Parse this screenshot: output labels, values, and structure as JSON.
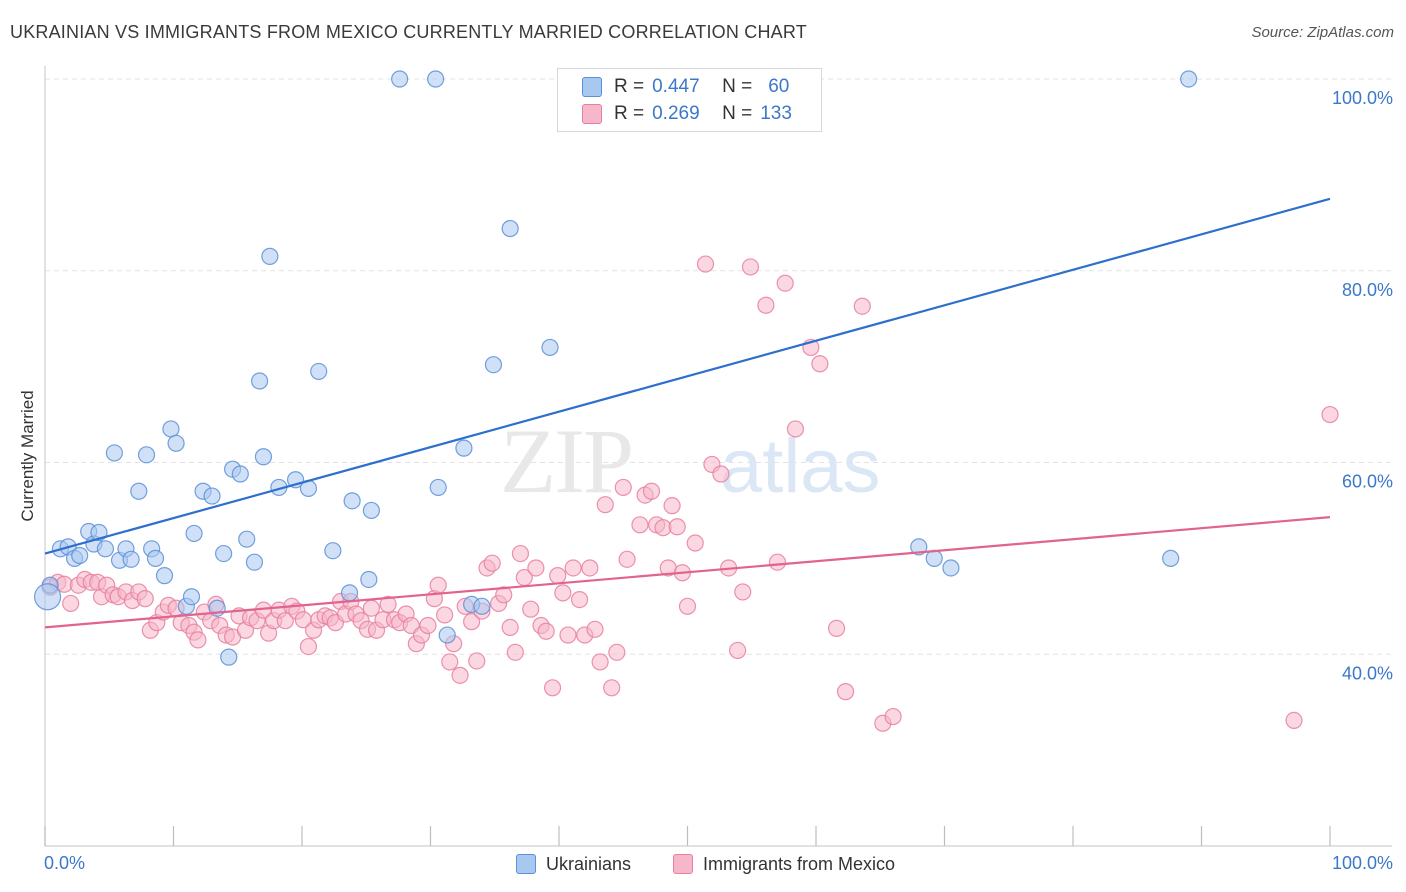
{
  "chart_data": {
    "type": "scatter",
    "title": "UKRAINIAN VS IMMIGRANTS FROM MEXICO CURRENTLY MARRIED CORRELATION CHART",
    "source": "Source: ZipAtlas.com",
    "xlabel": "",
    "ylabel": "Currently Married",
    "xlim": [
      0,
      100
    ],
    "ylim": [
      20,
      100
    ],
    "x_tick_labels": {
      "min": "0.0%",
      "max": "100.0%"
    },
    "y_ticks": [
      {
        "value": 100,
        "label": "100.0%"
      },
      {
        "value": 80,
        "label": "80.0%"
      },
      {
        "value": 60,
        "label": "60.0%"
      },
      {
        "value": 40,
        "label": "40.0%"
      }
    ],
    "watermark": {
      "zip": "ZIP",
      "atlas": "atlas"
    },
    "legend": {
      "r_label": "R =",
      "n_label": "N =",
      "entries": [
        {
          "r": "0.447",
          "n": "60",
          "color": "#a9c8f0"
        },
        {
          "r": "0.269",
          "n": "133",
          "color": "#f5b7c9"
        }
      ]
    },
    "series": [
      {
        "name": "Ukrainians",
        "color": "#a9c8f0",
        "stroke": "#5b8fd8",
        "line_color": "#2e6fce",
        "trend": {
          "x": [
            0,
            100
          ],
          "y": [
            50.5,
            87.5
          ]
        },
        "points": [
          [
            0.4,
            47.2
          ],
          [
            1.2,
            51
          ],
          [
            1.8,
            51.2
          ],
          [
            2.3,
            50
          ],
          [
            2.7,
            50.3
          ],
          [
            3.4,
            52.8
          ],
          [
            3.8,
            51.5
          ],
          [
            4.2,
            52.7
          ],
          [
            4.7,
            51
          ],
          [
            5.4,
            61
          ],
          [
            5.8,
            49.8
          ],
          [
            6.3,
            51
          ],
          [
            6.7,
            49.9
          ],
          [
            7.3,
            57
          ],
          [
            7.9,
            60.8
          ],
          [
            8.3,
            51
          ],
          [
            8.6,
            50
          ],
          [
            9.3,
            48.2
          ],
          [
            9.8,
            63.5
          ],
          [
            10.2,
            62
          ],
          [
            11,
            45
          ],
          [
            11.4,
            46
          ],
          [
            11.6,
            52.6
          ],
          [
            12.3,
            57
          ],
          [
            13,
            56.5
          ],
          [
            13.4,
            44.8
          ],
          [
            13.9,
            50.5
          ],
          [
            14.3,
            39.7
          ],
          [
            14.6,
            59.3
          ],
          [
            15.2,
            58.8
          ],
          [
            15.7,
            52
          ],
          [
            16.3,
            49.6
          ],
          [
            16.7,
            68.5
          ],
          [
            17,
            60.6
          ],
          [
            17.5,
            81.5
          ],
          [
            18.2,
            57.4
          ],
          [
            19.5,
            58.2
          ],
          [
            20.5,
            57.3
          ],
          [
            21.3,
            69.5
          ],
          [
            22.4,
            50.8
          ],
          [
            23.7,
            46.4
          ],
          [
            23.9,
            56
          ],
          [
            25.2,
            47.8
          ],
          [
            25.4,
            55
          ],
          [
            27.6,
            100
          ],
          [
            30.4,
            100
          ],
          [
            30.6,
            57.4
          ],
          [
            31.3,
            42
          ],
          [
            32.6,
            61.5
          ],
          [
            33.2,
            45.2
          ],
          [
            34,
            45
          ],
          [
            34.9,
            70.2
          ],
          [
            36.2,
            84.4
          ],
          [
            39.3,
            72
          ],
          [
            68,
            51.2
          ],
          [
            69.2,
            50
          ],
          [
            70.5,
            49
          ],
          [
            87.6,
            50
          ],
          [
            89,
            100
          ],
          [
            0.2,
            46
          ]
        ],
        "point_sizes": {
          "default": 16,
          "large_index": 59,
          "large": 26
        }
      },
      {
        "name": "Immigrants from Mexico",
        "color": "#f5b7c9",
        "stroke": "#e77fa0",
        "line_color": "#e2638e",
        "trend": {
          "x": [
            0,
            100
          ],
          "y": [
            42.8,
            54.3
          ]
        },
        "points": [
          [
            0.4,
            47
          ],
          [
            1,
            47.5
          ],
          [
            1.5,
            47.3
          ],
          [
            2,
            45.3
          ],
          [
            2.6,
            47.2
          ],
          [
            3.1,
            47.8
          ],
          [
            3.6,
            47.5
          ],
          [
            4.1,
            47.5
          ],
          [
            4.4,
            46
          ],
          [
            4.8,
            47.2
          ],
          [
            5.3,
            46.2
          ],
          [
            5.7,
            46
          ],
          [
            6.3,
            46.5
          ],
          [
            6.8,
            45.6
          ],
          [
            7.3,
            46.5
          ],
          [
            7.8,
            45.8
          ],
          [
            8.2,
            42.5
          ],
          [
            8.7,
            43.3
          ],
          [
            9.2,
            44.4
          ],
          [
            9.6,
            45.1
          ],
          [
            10.2,
            44.8
          ],
          [
            10.6,
            43.3
          ],
          [
            11.2,
            43
          ],
          [
            11.6,
            42.3
          ],
          [
            11.9,
            41.5
          ],
          [
            12.4,
            44.4
          ],
          [
            12.9,
            43.5
          ],
          [
            13.3,
            45.2
          ],
          [
            13.6,
            43
          ],
          [
            14.1,
            42
          ],
          [
            14.6,
            41.8
          ],
          [
            15.1,
            44
          ],
          [
            15.6,
            42.5
          ],
          [
            16,
            43.8
          ],
          [
            16.5,
            43.5
          ],
          [
            17,
            44.6
          ],
          [
            17.4,
            42.2
          ],
          [
            17.8,
            43.5
          ],
          [
            18.2,
            44.6
          ],
          [
            18.7,
            43.5
          ],
          [
            19.2,
            45
          ],
          [
            19.6,
            44.5
          ],
          [
            20.1,
            43.6
          ],
          [
            20.5,
            40.8
          ],
          [
            20.9,
            42.5
          ],
          [
            21.3,
            43.6
          ],
          [
            21.8,
            44
          ],
          [
            22.2,
            43.8
          ],
          [
            22.6,
            43.3
          ],
          [
            23,
            45.5
          ],
          [
            23.4,
            44.2
          ],
          [
            23.8,
            45.5
          ],
          [
            24.2,
            44.2
          ],
          [
            24.6,
            43.5
          ],
          [
            25.1,
            42.6
          ],
          [
            25.4,
            44.8
          ],
          [
            25.8,
            42.5
          ],
          [
            26.3,
            43.6
          ],
          [
            26.7,
            45.2
          ],
          [
            27.2,
            43.6
          ],
          [
            27.6,
            43.3
          ],
          [
            28.1,
            44.2
          ],
          [
            28.5,
            43
          ],
          [
            28.9,
            41.1
          ],
          [
            29.3,
            42
          ],
          [
            29.8,
            43
          ],
          [
            30.3,
            45.8
          ],
          [
            30.6,
            47.2
          ],
          [
            31.1,
            44.1
          ],
          [
            31.5,
            39.2
          ],
          [
            31.8,
            41.1
          ],
          [
            32.3,
            37.8
          ],
          [
            32.7,
            45
          ],
          [
            33.2,
            43.4
          ],
          [
            33.6,
            39.3
          ],
          [
            34,
            44.5
          ],
          [
            34.4,
            49
          ],
          [
            34.8,
            49.5
          ],
          [
            35.3,
            45.3
          ],
          [
            35.7,
            46.2
          ],
          [
            36.2,
            42.8
          ],
          [
            36.6,
            40.2
          ],
          [
            37,
            50.5
          ],
          [
            37.3,
            48
          ],
          [
            37.8,
            44.7
          ],
          [
            38.2,
            49
          ],
          [
            38.6,
            43
          ],
          [
            39,
            42.4
          ],
          [
            39.5,
            36.5
          ],
          [
            39.9,
            48.2
          ],
          [
            40.3,
            46.4
          ],
          [
            40.7,
            42
          ],
          [
            41.1,
            49
          ],
          [
            41.6,
            45.7
          ],
          [
            42,
            42
          ],
          [
            42.4,
            49
          ],
          [
            42.8,
            42.6
          ],
          [
            43.2,
            39.2
          ],
          [
            43.6,
            55.6
          ],
          [
            44.1,
            36.5
          ],
          [
            44.5,
            40.2
          ],
          [
            45,
            57.4
          ],
          [
            45.3,
            49.9
          ],
          [
            46.3,
            53.5
          ],
          [
            46.7,
            56.6
          ],
          [
            47.2,
            57
          ],
          [
            47.6,
            53.5
          ],
          [
            48.1,
            53.2
          ],
          [
            48.5,
            49
          ],
          [
            48.8,
            55.5
          ],
          [
            49.2,
            53.3
          ],
          [
            49.6,
            48.5
          ],
          [
            50,
            45
          ],
          [
            50.6,
            51.6
          ],
          [
            51.4,
            80.7
          ],
          [
            51.9,
            59.8
          ],
          [
            52.6,
            58.8
          ],
          [
            53.2,
            49
          ],
          [
            53.9,
            40.4
          ],
          [
            54.3,
            46.5
          ],
          [
            54.9,
            80.4
          ],
          [
            56.1,
            76.4
          ],
          [
            57,
            49.6
          ],
          [
            57.6,
            78.7
          ],
          [
            58.4,
            63.5
          ],
          [
            59.6,
            72
          ],
          [
            60.3,
            70.3
          ],
          [
            61.6,
            42.7
          ],
          [
            62.3,
            36.1
          ],
          [
            63.6,
            76.3
          ],
          [
            65.2,
            32.8
          ],
          [
            66,
            33.5
          ],
          [
            97.2,
            33.1
          ],
          [
            100,
            65
          ]
        ],
        "point_sizes": {
          "default": 16
        }
      }
    ]
  }
}
